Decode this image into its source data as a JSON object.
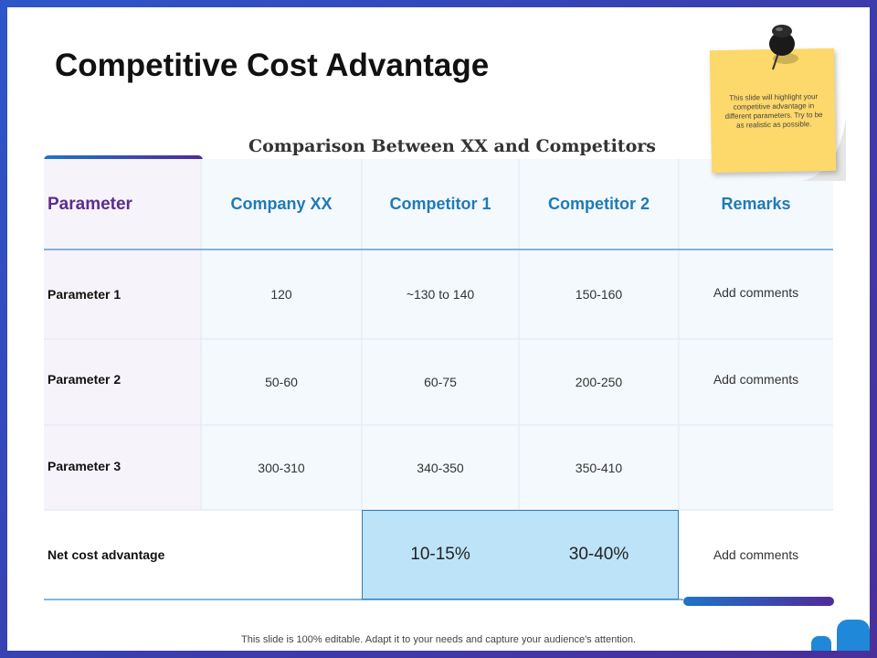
{
  "slide": {
    "title": "Competitive Cost Advantage",
    "subtitle": "Comparison Between XX and Competitors",
    "note": "This slide will highlight your competitive advantage in different parameters. Try to be as realistic as possible.",
    "footer": "This slide is 100% editable. Adapt it to your needs and capture your audience's attention."
  },
  "table": {
    "headers": [
      "Parameter",
      "Company XX",
      "Competitor 1",
      "Competitor 2",
      "Remarks"
    ],
    "rows": [
      {
        "label": "Parameter 1",
        "company_xx": "120",
        "competitor_1": "~130 to 140",
        "competitor_2": "150-160",
        "remarks": "Add comments"
      },
      {
        "label": "Parameter 2",
        "company_xx": "50-60",
        "competitor_1": "60-75",
        "competitor_2": "200-250",
        "remarks": "Add comments"
      },
      {
        "label": "Parameter 3",
        "company_xx": "300-310",
        "competitor_1": "340-350",
        "competitor_2": "350-410",
        "remarks": ""
      }
    ],
    "net": {
      "label": "Net cost advantage",
      "competitor_1": "10-15%",
      "competitor_2": "30-40%",
      "remarks": "Add comments"
    }
  },
  "colors": {
    "accent_blue": "#1f7ab8",
    "accent_purple": "#5b2d8f",
    "highlight": "#bde3f8",
    "note_yellow": "#fdd86a"
  }
}
